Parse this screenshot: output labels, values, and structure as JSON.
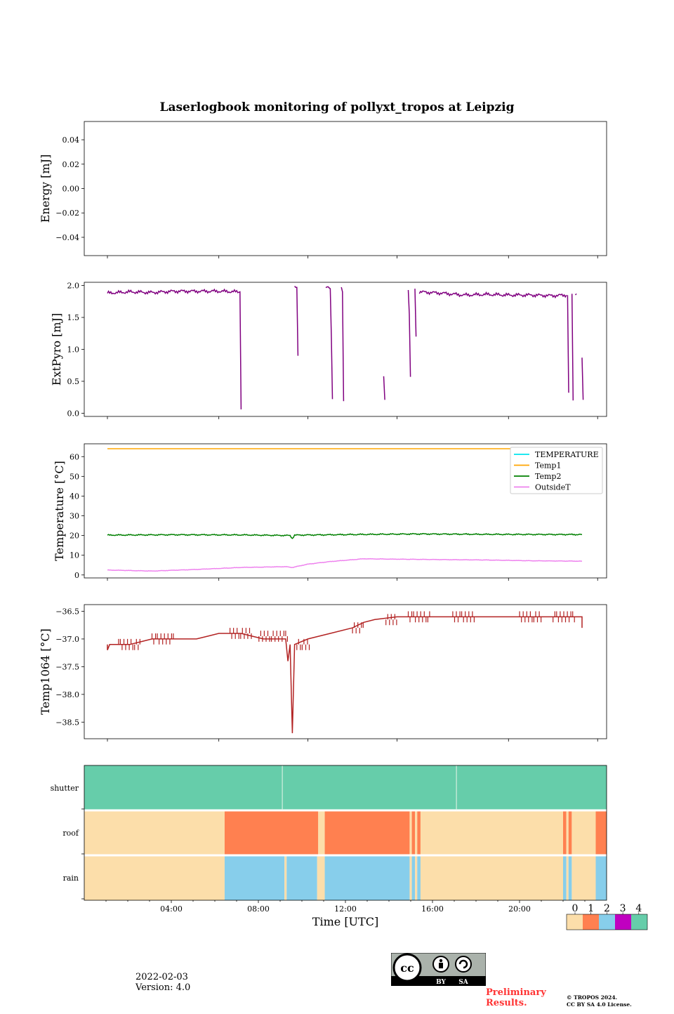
{
  "figure": {
    "title": "Laserlogbook monitoring of pollyxt_tropos at Leipzig",
    "date": "2022-02-03",
    "version": "Version: 4.0",
    "preliminary": [
      "Preliminary",
      "Results."
    ],
    "copyright": [
      "© TROPOS 2024.",
      "CC BY SA 4.0 License."
    ],
    "cc_badge": {
      "by": "BY",
      "sa": "SA"
    }
  },
  "chart_data": [
    {
      "type": "line",
      "panel": "energy",
      "ylabel": "Energy [mJ]",
      "ylim": [
        -0.055,
        0.055
      ],
      "yticks": [
        0.04,
        0.02,
        0.0,
        -0.02,
        -0.04
      ],
      "ytick_labels": [
        "0.04",
        "0.02",
        "0.00",
        "−0.02",
        "−0.04"
      ],
      "series": []
    },
    {
      "type": "line",
      "panel": "extpyro",
      "ylabel": "ExtPyro [mJ]",
      "ylim": [
        -0.05,
        2.05
      ],
      "yticks": [
        0,
        0.5,
        1,
        1.5,
        2
      ],
      "ytick_labels": [
        "0.0",
        "0.5",
        "1.0",
        "1.5",
        "2.0"
      ],
      "xlim": [
        0,
        24
      ],
      "series": [
        {
          "name": "ExtPyro",
          "color": "#800080",
          "points": [
            [
              1.0,
              1.88
            ],
            [
              2.0,
              1.9
            ],
            [
              3.0,
              1.89
            ],
            [
              4.0,
              1.91
            ],
            [
              5.0,
              1.91
            ],
            [
              6.0,
              1.91
            ],
            [
              6.9,
              1.9
            ],
            [
              6.95,
              1.9
            ],
            [
              7.0,
              0.06
            ]
          ],
          "extra": [
            [
              [
                9.4,
                1.98
              ],
              [
                9.5,
                1.97
              ],
              [
                9.55,
                0.9
              ]
            ],
            [
              [
                10.8,
                1.98
              ],
              [
                11.0,
                1.95
              ],
              [
                11.05,
                1.18
              ],
              [
                11.1,
                0.22
              ]
            ],
            [
              [
                11.5,
                1.98
              ],
              [
                11.55,
                1.9
              ],
              [
                11.6,
                0.19
              ]
            ],
            [
              [
                13.4,
                0.58
              ],
              [
                13.45,
                0.21
              ]
            ],
            [
              [
                14.5,
                1.93
              ],
              [
                14.55,
                1.55
              ],
              [
                14.6,
                0.57
              ]
            ],
            [
              [
                14.8,
                1.95
              ],
              [
                14.85,
                1.2
              ]
            ],
            [
              [
                15.0,
                1.9
              ],
              [
                16.0,
                1.88
              ],
              [
                17.0,
                1.85
              ],
              [
                18.0,
                1.86
              ],
              [
                19.0,
                1.85
              ],
              [
                20.0,
                1.85
              ],
              [
                21.0,
                1.84
              ],
              [
                21.6,
                1.85
              ]
            ],
            [
              [
                21.65,
                1.85
              ],
              [
                21.7,
                0.32
              ]
            ],
            [
              [
                21.85,
                1.87
              ],
              [
                21.9,
                0.2
              ]
            ],
            [
              [
                22.0,
                1.88
              ],
              [
                22.05,
                1.87
              ]
            ],
            [
              [
                22.3,
                0.87
              ],
              [
                22.35,
                0.21
              ]
            ]
          ]
        }
      ]
    },
    {
      "type": "line",
      "panel": "temperature",
      "ylabel": "Temperature [°C]",
      "ylim": [
        -1.5,
        66.5
      ],
      "yticks": [
        0,
        10,
        20,
        30,
        40,
        50,
        60
      ],
      "ytick_labels": [
        "0",
        "10",
        "20",
        "30",
        "40",
        "50",
        "60"
      ],
      "xlim": [
        0,
        24
      ],
      "legend": "top-right",
      "series": [
        {
          "name": "TEMPERATURE",
          "color": "#00e5ee",
          "points": []
        },
        {
          "name": "Temp1",
          "color": "#ffa500",
          "points": [
            [
              1.0,
              64
            ],
            [
              22.3,
              64
            ]
          ]
        },
        {
          "name": "Temp2",
          "color": "#008000",
          "points": [
            [
              1.0,
              20.2
            ],
            [
              4.0,
              20.4
            ],
            [
              7.0,
              20.3
            ],
            [
              9.2,
              20.0
            ],
            [
              9.3,
              18.5
            ],
            [
              9.4,
              20.2
            ],
            [
              12.0,
              20.5
            ],
            [
              15.0,
              20.8
            ],
            [
              18.0,
              20.6
            ],
            [
              22.3,
              20.5
            ]
          ]
        },
        {
          "name": "OutsideT",
          "color": "#ee82ee",
          "points": [
            [
              1.0,
              2.5
            ],
            [
              3.0,
              2.0
            ],
            [
              5.0,
              2.8
            ],
            [
              7.0,
              3.8
            ],
            [
              9.0,
              4.2
            ],
            [
              9.3,
              3.8
            ],
            [
              10.0,
              5.5
            ],
            [
              11.0,
              6.8
            ],
            [
              12.5,
              8.2
            ],
            [
              14.0,
              8.0
            ],
            [
              16.0,
              7.8
            ],
            [
              18.0,
              7.6
            ],
            [
              20.0,
              7.2
            ],
            [
              22.3,
              7.0
            ]
          ]
        }
      ]
    },
    {
      "type": "line",
      "panel": "temp1064",
      "ylabel": "Temp1064 [°C]",
      "ylim": [
        -38.8,
        -36.38
      ],
      "yticks": [
        -36.5,
        -37.0,
        -37.5,
        -38.0,
        -38.5
      ],
      "ytick_labels": [
        "−36.5",
        "−37.0",
        "−37.5",
        "−38.0",
        "−38.5"
      ],
      "xlim": [
        0,
        24
      ],
      "series": [
        {
          "name": "Temp1064",
          "color": "#b22222",
          "points": [
            [
              1.0,
              -37.1
            ],
            [
              1.0,
              -37.2
            ],
            [
              1.1,
              -37.1
            ],
            [
              2.0,
              -37.1
            ],
            [
              2.5,
              -37.05
            ],
            [
              3.0,
              -37.0
            ],
            [
              4.0,
              -37.0
            ],
            [
              5.0,
              -37.0
            ],
            [
              5.5,
              -36.95
            ],
            [
              6.0,
              -36.9
            ],
            [
              7.0,
              -36.9
            ],
            [
              7.5,
              -36.95
            ],
            [
              8.0,
              -37.0
            ],
            [
              9.0,
              -37.0
            ],
            [
              9.1,
              -37.4
            ],
            [
              9.2,
              -37.1
            ],
            [
              9.3,
              -38.7
            ],
            [
              9.4,
              -37.1
            ],
            [
              10.0,
              -37.0
            ],
            [
              11.0,
              -36.9
            ],
            [
              12.0,
              -36.8
            ],
            [
              12.5,
              -36.7
            ],
            [
              13.0,
              -36.65
            ],
            [
              14.0,
              -36.6
            ],
            [
              15.0,
              -36.6
            ],
            [
              16.0,
              -36.6
            ],
            [
              18.0,
              -36.6
            ],
            [
              20.0,
              -36.6
            ],
            [
              22.0,
              -36.6
            ],
            [
              22.3,
              -36.6
            ],
            [
              22.3,
              -36.8
            ]
          ],
          "noise": [
            [
              1.5,
              2.5
            ],
            [
              3.0,
              4.0
            ],
            [
              6.5,
              7.5
            ],
            [
              7.8,
              9.1
            ],
            [
              9.5,
              10.1
            ],
            [
              12.0,
              12.5
            ],
            [
              13.5,
              14.0
            ],
            [
              14.5,
              15.5
            ],
            [
              16.5,
              17.5
            ],
            [
              19.5,
              20.5
            ],
            [
              21.0,
              22.0
            ]
          ]
        }
      ]
    },
    {
      "type": "heatmap",
      "panel": "status",
      "rows": [
        "shutter",
        "roof",
        "rain"
      ],
      "xlim": [
        0,
        24
      ],
      "xticks": [
        4,
        8,
        12,
        16,
        20
      ],
      "xtick_labels": [
        "04:00",
        "08:00",
        "12:00",
        "16:00",
        "20:00"
      ],
      "xlabel": "Time [UTC]",
      "colors": [
        "#fcdeaa",
        "#ff8050",
        "#87ceeb",
        "#c000c0",
        "#66cdaa"
      ],
      "colorbar_labels": [
        "0",
        "1",
        "2",
        "3",
        "4"
      ],
      "segments": {
        "shutter": [
          [
            0,
            24,
            4
          ]
        ],
        "roof": [
          [
            0,
            6.45,
            0
          ],
          [
            6.45,
            10.75,
            1
          ],
          [
            10.75,
            11.05,
            0
          ],
          [
            11.05,
            14.95,
            1
          ],
          [
            14.95,
            15.05,
            0
          ],
          [
            15.05,
            15.2,
            1
          ],
          [
            15.2,
            15.3,
            0
          ],
          [
            15.3,
            15.45,
            1
          ],
          [
            15.45,
            22.0,
            0
          ],
          [
            22.0,
            22.15,
            1
          ],
          [
            22.15,
            22.25,
            0
          ],
          [
            22.25,
            22.4,
            1
          ],
          [
            22.4,
            23.5,
            0
          ],
          [
            23.5,
            24,
            1
          ]
        ],
        "rain": [
          [
            0,
            6.45,
            0
          ],
          [
            6.45,
            9.2,
            2
          ],
          [
            9.2,
            9.3,
            0
          ],
          [
            9.3,
            10.7,
            2
          ],
          [
            10.7,
            11.05,
            0
          ],
          [
            11.05,
            14.95,
            2
          ],
          [
            14.95,
            15.05,
            0
          ],
          [
            15.05,
            15.2,
            2
          ],
          [
            15.2,
            15.3,
            0
          ],
          [
            15.3,
            15.45,
            2
          ],
          [
            15.45,
            22.0,
            0
          ],
          [
            22.0,
            22.15,
            2
          ],
          [
            22.15,
            22.25,
            0
          ],
          [
            22.25,
            22.4,
            2
          ],
          [
            22.4,
            23.5,
            0
          ],
          [
            23.5,
            24,
            2
          ]
        ]
      },
      "gaps": [
        9.1,
        17.1
      ]
    }
  ]
}
